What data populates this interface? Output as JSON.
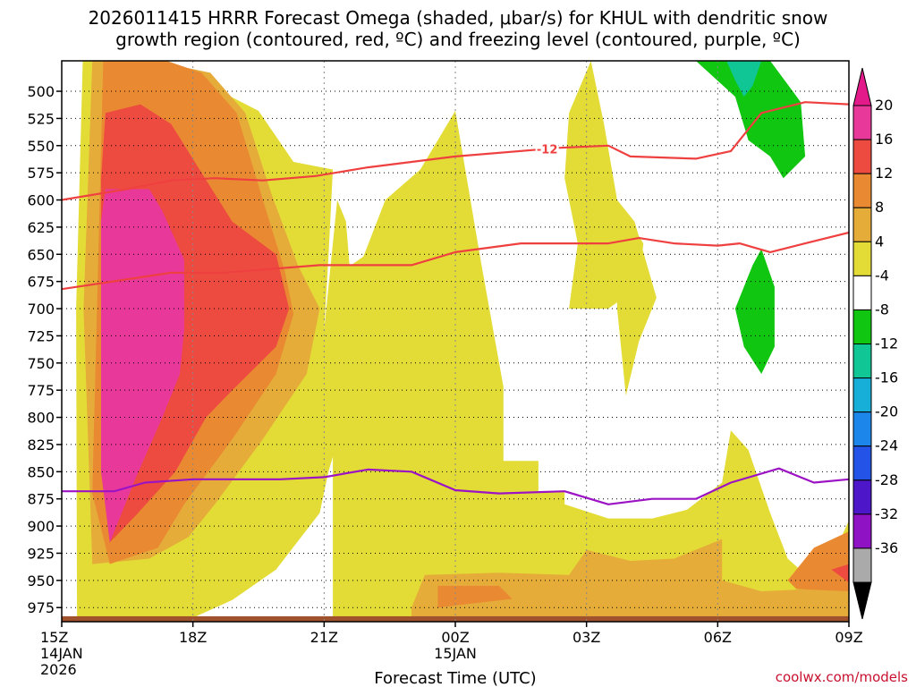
{
  "chart_data": {
    "type": "contour",
    "title_line1": "2026011415 HRRR Forecast Omega (shaded, μbar/s) for KHUL with dendritic snow",
    "title_line2": "growth region (contoured, red, ºC) and freezing level (contoured, purple, ºC)",
    "xlabel": "Forecast Time (UTC)",
    "credit": "coolwx.com/models",
    "x_ticks": [
      {
        "hour": 0,
        "label": "15Z",
        "sub1": "14JAN",
        "sub2": "2026"
      },
      {
        "hour": 3,
        "label": "18Z"
      },
      {
        "hour": 6,
        "label": "21Z"
      },
      {
        "hour": 9,
        "label": "00Z",
        "sub1": "15JAN"
      },
      {
        "hour": 12,
        "label": "03Z"
      },
      {
        "hour": 15,
        "label": "06Z"
      },
      {
        "hour": 18,
        "label": "09Z"
      }
    ],
    "xlim_hours": [
      0,
      18
    ],
    "y_ticks": [
      500,
      525,
      550,
      575,
      600,
      625,
      650,
      675,
      700,
      725,
      750,
      775,
      800,
      825,
      850,
      875,
      900,
      925,
      950,
      975
    ],
    "ylim_hpa": [
      472,
      988
    ],
    "colorbar": {
      "labels": [
        "20",
        "16",
        "12",
        "8",
        "4",
        "-4",
        "-8",
        "-12",
        "-16",
        "-20",
        "-24",
        "-28",
        "-32",
        "-36"
      ],
      "colors": [
        "#e8399b",
        "#ee4b40",
        "#e98a32",
        "#e5ac3a",
        "#e4dc36",
        "#ffffff",
        "#11c611",
        "#10c694",
        "#17aed8",
        "#1d86ea",
        "#2453e8",
        "#4d16c8",
        "#8f12c4",
        "#aaaaaa"
      ],
      "top_arrow_color": "#e31b8a",
      "bottom_arrow_color": "#000000"
    },
    "omega_bands": [
      {
        "level": "4",
        "color": "#e4dc36",
        "polys": [
          [
            [
              0.48,
              472
            ],
            [
              1.7,
              472
            ],
            [
              2.8,
              483
            ],
            [
              4.5,
              518
            ],
            [
              5.3,
              565
            ],
            [
              6.2,
              572
            ],
            [
              6.1,
              652
            ],
            [
              6.0,
              720
            ],
            [
              6.3,
              600
            ],
            [
              6.5,
              620
            ],
            [
              6.7,
              720
            ],
            [
              6.8,
              793
            ],
            [
              6.5,
              795
            ],
            [
              6.1,
              850
            ],
            [
              5.9,
              888
            ],
            [
              4.9,
              940
            ],
            [
              3.9,
              968
            ],
            [
              2.8,
              988
            ],
            [
              0.35,
              988
            ],
            [
              0.33,
              700
            ]
          ],
          [
            [
              6.2,
              672
            ],
            [
              6.9,
              652
            ],
            [
              7.4,
              600
            ],
            [
              8.2,
              572
            ],
            [
              8.2,
              572
            ],
            [
              9.0,
              518
            ],
            [
              9.6,
              660
            ],
            [
              10.1,
              772
            ],
            [
              10.1,
              840
            ],
            [
              10.9,
              840
            ],
            [
              10.9,
              945
            ],
            [
              10.0,
              975
            ],
            [
              9.0,
              988
            ],
            [
              6.2,
              988
            ]
          ],
          [
            [
              11.6,
              520
            ],
            [
              12.1,
              472
            ],
            [
              12.4,
              530
            ],
            [
              12.7,
              600
            ],
            [
              13.3,
              640
            ],
            [
              13.2,
              680
            ],
            [
              12.5,
              700
            ],
            [
              11.6,
              700
            ],
            [
              11.8,
              640
            ],
            [
              11.5,
              580
            ]
          ],
          [
            [
              12.7,
              600
            ],
            [
              13.1,
              620
            ],
            [
              13.6,
              690
            ],
            [
              13.2,
              730
            ],
            [
              12.9,
              780
            ],
            [
              12.7,
              700
            ]
          ],
          [
            [
              9.0,
              868
            ],
            [
              11.5,
              868
            ],
            [
              11.5,
              880
            ],
            [
              12.5,
              893
            ],
            [
              13.5,
              893
            ],
            [
              14.3,
              885
            ],
            [
              15.1,
              860
            ],
            [
              15.3,
              812
            ],
            [
              15.7,
              830
            ],
            [
              16.2,
              888
            ],
            [
              16.6,
              930
            ],
            [
              17.1,
              948
            ],
            [
              17.6,
              930
            ],
            [
              18.0,
              895
            ],
            [
              18.0,
              988
            ],
            [
              9.0,
              988
            ]
          ]
        ]
      },
      {
        "level": "8",
        "color": "#e5ac3a",
        "polys": [
          [
            [
              0.7,
              472
            ],
            [
              2.1,
              472
            ],
            [
              3.4,
              483
            ],
            [
              4.2,
              520
            ],
            [
              4.8,
              595
            ],
            [
              5.4,
              660
            ],
            [
              5.9,
              700
            ],
            [
              5.6,
              760
            ],
            [
              4.6,
              820
            ],
            [
              3.5,
              880
            ],
            [
              2.9,
              910
            ],
            [
              2.0,
              930
            ],
            [
              0.7,
              935
            ],
            [
              0.5,
              700
            ]
          ],
          [
            [
              8.0,
              975
            ],
            [
              8.3,
              945
            ],
            [
              10.0,
              943
            ],
            [
              11.6,
              945
            ],
            [
              12.0,
              922
            ],
            [
              13.0,
              932
            ],
            [
              14.0,
              930
            ],
            [
              15.1,
              912
            ],
            [
              15.1,
              950
            ],
            [
              16.0,
              960
            ],
            [
              17.1,
              958
            ],
            [
              18.0,
              925
            ],
            [
              18.0,
              988
            ],
            [
              8.0,
              988
            ]
          ]
        ]
      },
      {
        "level": "12",
        "color": "#e98a32",
        "polys": [
          [
            [
              0.95,
              472
            ],
            [
              2.4,
              472
            ],
            [
              3.2,
              483
            ],
            [
              4.0,
              520
            ],
            [
              4.6,
              600
            ],
            [
              5.1,
              665
            ],
            [
              5.3,
              705
            ],
            [
              4.9,
              760
            ],
            [
              3.9,
              820
            ],
            [
              2.8,
              880
            ],
            [
              2.2,
              920
            ],
            [
              1.1,
              935
            ],
            [
              0.7,
              870
            ]
          ],
          [
            [
              8.6,
              955
            ],
            [
              10.0,
              955
            ],
            [
              10.3,
              967
            ],
            [
              8.6,
              975
            ]
          ],
          [
            [
              16.6,
              950
            ],
            [
              17.2,
              920
            ],
            [
              18.0,
              905
            ],
            [
              18.0,
              960
            ],
            [
              16.8,
              958
            ]
          ]
        ]
      },
      {
        "level": "16",
        "color": "#ee4b40",
        "polys": [
          [
            [
              1.0,
              520
            ],
            [
              1.8,
              512
            ],
            [
              2.5,
              530
            ],
            [
              3.2,
              575
            ],
            [
              3.9,
              620
            ],
            [
              4.9,
              650
            ],
            [
              5.2,
              700
            ],
            [
              4.9,
              735
            ],
            [
              3.9,
              775
            ],
            [
              3.3,
              800
            ],
            [
              2.6,
              850
            ],
            [
              1.7,
              890
            ],
            [
              1.1,
              915
            ],
            [
              0.9,
              850
            ],
            [
              0.9,
              580
            ]
          ],
          [
            [
              17.6,
              940
            ],
            [
              18.0,
              935
            ],
            [
              18.0,
              952
            ]
          ]
        ]
      },
      {
        "level": "20",
        "color": "#e8399b",
        "polys": [
          [
            [
              1.0,
              590
            ],
            [
              2.0,
              590
            ],
            [
              2.3,
              610
            ],
            [
              2.8,
              655
            ],
            [
              2.8,
              720
            ],
            [
              2.7,
              760
            ],
            [
              2.3,
              800
            ],
            [
              1.7,
              855
            ],
            [
              1.1,
              915
            ],
            [
              0.9,
              850
            ],
            [
              0.9,
              620
            ]
          ]
        ]
      },
      {
        "level": "-4",
        "color": "#11c611",
        "polys": [
          [
            [
              14.5,
              472
            ],
            [
              16.2,
              472
            ],
            [
              16.9,
              510
            ],
            [
              17.0,
              560
            ],
            [
              16.5,
              580
            ],
            [
              16.2,
              560
            ],
            [
              15.7,
              545
            ],
            [
              15.4,
              505
            ]
          ],
          [
            [
              15.4,
              700
            ],
            [
              15.8,
              660
            ],
            [
              16.0,
              645
            ],
            [
              16.3,
              680
            ],
            [
              16.3,
              735
            ],
            [
              16.0,
              760
            ],
            [
              15.6,
              735
            ]
          ]
        ]
      },
      {
        "level": "-8",
        "color": "#10c694",
        "polys": [
          [
            [
              15.2,
              472
            ],
            [
              16.0,
              472
            ],
            [
              15.8,
              495
            ],
            [
              15.6,
              505
            ],
            [
              15.4,
              490
            ]
          ]
        ]
      }
    ],
    "dgz_contours": [
      {
        "label": "-12",
        "label_at_hour": 11.1,
        "points": [
          [
            0,
            600
          ],
          [
            1.5,
            590
          ],
          [
            2.5,
            582
          ],
          [
            3.5,
            580
          ],
          [
            4.6,
            582
          ],
          [
            5.8,
            578
          ],
          [
            7.0,
            570
          ],
          [
            8.0,
            565
          ],
          [
            9.0,
            560
          ],
          [
            11.4,
            552
          ],
          [
            12.5,
            550
          ],
          [
            13.0,
            560
          ],
          [
            14.5,
            562
          ],
          [
            15.3,
            555
          ],
          [
            16.0,
            520
          ],
          [
            17.0,
            510
          ],
          [
            18.0,
            512
          ]
        ]
      },
      {
        "label": "",
        "label_at_hour": null,
        "points": [
          [
            0,
            682
          ],
          [
            1.5,
            673
          ],
          [
            2.5,
            667
          ],
          [
            3.7,
            667
          ],
          [
            5.9,
            660
          ],
          [
            8.0,
            660
          ],
          [
            9.0,
            648
          ],
          [
            10.5,
            640
          ],
          [
            12.5,
            640
          ],
          [
            13.2,
            635
          ],
          [
            14.0,
            640
          ],
          [
            15.0,
            642
          ],
          [
            15.5,
            640
          ],
          [
            16.2,
            648
          ],
          [
            17.0,
            640
          ],
          [
            18.0,
            630
          ]
        ]
      }
    ],
    "freezing_level": {
      "points": [
        [
          0,
          868
        ],
        [
          1.2,
          868
        ],
        [
          1.9,
          860
        ],
        [
          3.0,
          857
        ],
        [
          5.0,
          857
        ],
        [
          6.0,
          855
        ],
        [
          7.0,
          848
        ],
        [
          8.0,
          850
        ],
        [
          9.0,
          867
        ],
        [
          10.0,
          870
        ],
        [
          11.5,
          868
        ],
        [
          12.5,
          880
        ],
        [
          13.5,
          875
        ],
        [
          14.5,
          875
        ],
        [
          15.3,
          860
        ],
        [
          16.4,
          847
        ],
        [
          17.2,
          860
        ],
        [
          18.0,
          857
        ]
      ]
    },
    "terrain": {
      "hpa": 983
    }
  }
}
